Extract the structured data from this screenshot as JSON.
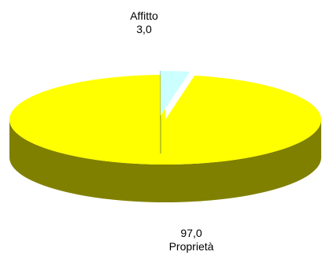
{
  "chart_data": {
    "type": "pie",
    "style": "3d",
    "slices": [
      {
        "label": "Affitto",
        "value": 3.0,
        "value_text": "3,0",
        "color": "#ccffff",
        "side_color": "#5e8a86",
        "exploded": true
      },
      {
        "label": "Proprietà",
        "value": 97.0,
        "value_text": "97,0",
        "color": "#ffff00",
        "side_color": "#808000",
        "exploded": false
      }
    ],
    "legend": false
  }
}
